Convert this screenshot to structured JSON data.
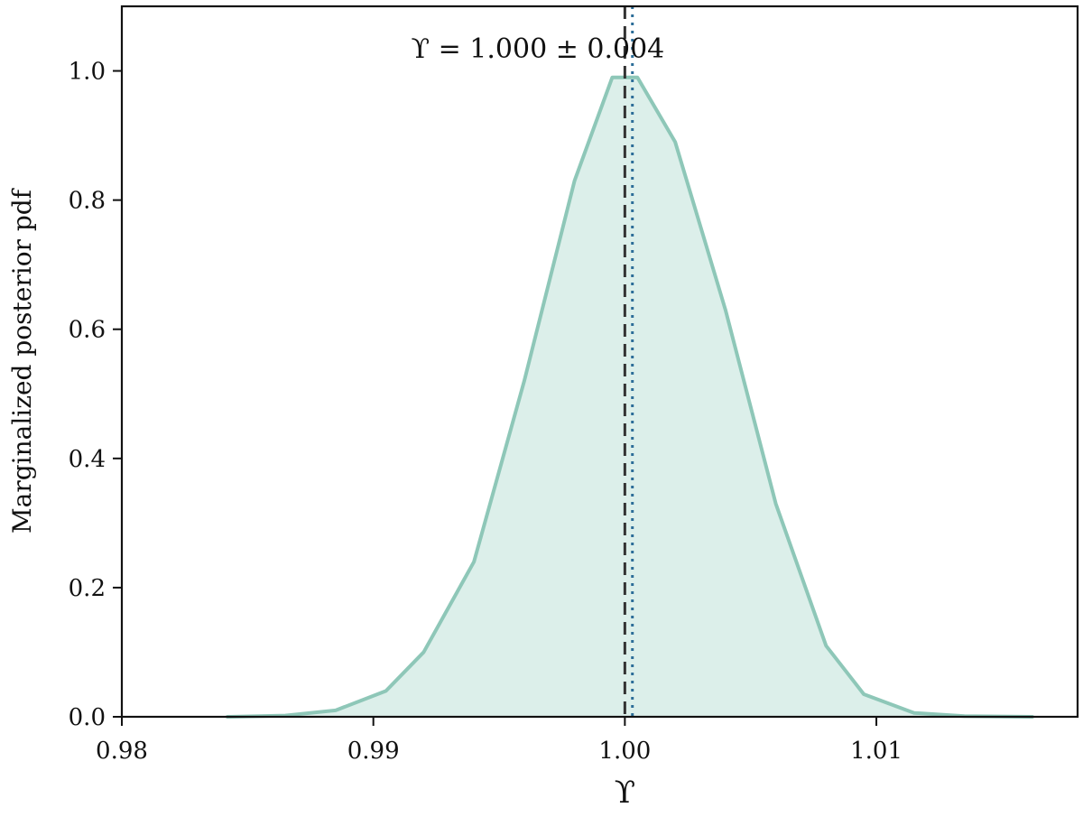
{
  "chart_data": {
    "type": "area",
    "title": "",
    "xlabel": "ϒ",
    "ylabel": "Marginalized posterior pdf",
    "xlim": [
      0.98,
      1.018
    ],
    "ylim": [
      0.0,
      1.1
    ],
    "xticks": [
      0.98,
      0.99,
      1.0,
      1.01
    ],
    "xtick_labels": [
      "0.98",
      "0.99",
      "1.00",
      "1.01"
    ],
    "yticks": [
      0.0,
      0.2,
      0.4,
      0.6,
      0.8,
      1.0
    ],
    "ytick_labels": [
      "0.0",
      "0.2",
      "0.4",
      "0.6",
      "0.8",
      "1.0"
    ],
    "grid": false,
    "series": [
      {
        "x": [
          0.9842,
          0.9865,
          0.9885,
          0.9905,
          0.992,
          0.994,
          0.996,
          0.998,
          0.9995,
          1.0005,
          1.002,
          1.004,
          1.006,
          1.008,
          1.0095,
          1.0115,
          1.0135,
          1.0162
        ],
        "y": [
          0.0,
          0.002,
          0.01,
          0.04,
          0.1,
          0.24,
          0.52,
          0.83,
          0.99,
          0.99,
          0.89,
          0.63,
          0.33,
          0.11,
          0.035,
          0.006,
          0.001,
          0.0
        ],
        "color": "#8ec7b8",
        "fill_color": "#dcefea"
      }
    ],
    "reference_lines": [
      {
        "x": 1.0,
        "style": "dashed",
        "color": "#333333"
      },
      {
        "x": 1.0003,
        "style": "dotted",
        "color": "#2c6d98"
      }
    ],
    "annotations": [
      {
        "text": "ϒ = 1.000 ± 0.004",
        "x": 0.9915,
        "y": 1.02,
        "color": "#2e5f86"
      }
    ]
  }
}
